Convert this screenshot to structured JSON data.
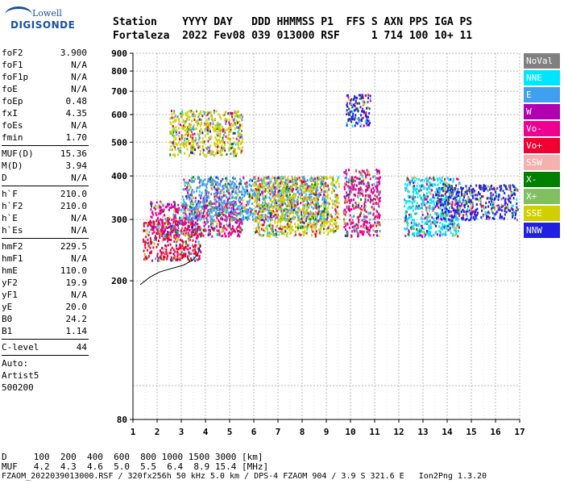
{
  "logo": {
    "line1": "Lowell",
    "line2": "DIGISONDE"
  },
  "header": {
    "row1": "Station    YYYY DAY   DDD HHMMSS P1  FFS S AXN PPS IGA PS",
    "row2": "Fortaleza  2022 Fev08 039 013000 RSF     1 714 100 10+ 11"
  },
  "parameters": [
    [
      {
        "name": "foF2",
        "value": "3.900"
      },
      {
        "name": "foF1",
        "value": "N/A"
      },
      {
        "name": "foF1p",
        "value": "N/A"
      },
      {
        "name": "foE",
        "value": "N/A"
      },
      {
        "name": "foEp",
        "value": "0.48"
      },
      {
        "name": "fxI",
        "value": "4.35"
      },
      {
        "name": "foEs",
        "value": "N/A"
      },
      {
        "name": "fmin",
        "value": "1.70"
      }
    ],
    [
      {
        "name": "MUF(D)",
        "value": "15.36"
      },
      {
        "name": "M(D)",
        "value": "3.94"
      },
      {
        "name": "D",
        "value": "N/A"
      }
    ],
    [
      {
        "name": "h`F",
        "value": "210.0"
      },
      {
        "name": "h`F2",
        "value": "210.0"
      },
      {
        "name": "h`E",
        "value": "N/A"
      },
      {
        "name": "h`Es",
        "value": "N/A"
      }
    ],
    [
      {
        "name": "hmF2",
        "value": "229.5"
      },
      {
        "name": "hmF1",
        "value": "N/A"
      },
      {
        "name": "hmE",
        "value": "110.0"
      },
      {
        "name": "yF2",
        "value": "19.9"
      },
      {
        "name": "yF1",
        "value": "N/A"
      },
      {
        "name": "yE",
        "value": "20.0"
      },
      {
        "name": "B0",
        "value": "24.2"
      },
      {
        "name": "B1",
        "value": "1.14"
      }
    ],
    [
      {
        "name": "C-level",
        "value": "44"
      }
    ]
  ],
  "autoscaling": {
    "label": "Auto:",
    "artist": "Artist5",
    "version": "500200"
  },
  "legend": [
    {
      "label": "NoVal",
      "color": "#808080"
    },
    {
      "label": "NNE",
      "color": "#00e5ff"
    },
    {
      "label": "E",
      "color": "#3fa0f0"
    },
    {
      "label": "W",
      "color": "#b000b0"
    },
    {
      "label": "Vo-",
      "color": "#f00090"
    },
    {
      "label": "Vo+",
      "color": "#f00030"
    },
    {
      "label": "SSW",
      "color": "#f5b0b0"
    },
    {
      "label": "X-",
      "color": "#008000"
    },
    {
      "label": "X+",
      "color": "#80c060"
    },
    {
      "label": "SSE",
      "color": "#d0d000"
    },
    {
      "label": "NNW",
      "color": "#2020e0"
    }
  ],
  "bottom": {
    "d_line": "D     100  200  400  600  800 1000 1500 3000 [km]",
    "muf_line": "MUF   4.2  4.3  4.6  5.0  5.5  6.4  8.9 15.4 [MHz]",
    "file_line": "FZAOM_2022039013000.RSF / 320fx256h 50 kHz 5.0 km / DPS-4 FZAOM 904 / 3.9 S 321.6 E   Ion2Png 1.3.20"
  },
  "chart_data": {
    "type": "scatter",
    "title": "",
    "xlabel": "",
    "ylabel": "",
    "xlim": [
      1,
      17
    ],
    "ylim": [
      80,
      900
    ],
    "x_ticks": [
      1,
      2,
      3,
      4,
      5,
      6,
      7,
      8,
      9,
      10,
      11,
      12,
      13,
      14,
      15,
      16,
      17
    ],
    "y_ticks": [
      80,
      200,
      300,
      400,
      500,
      600,
      700,
      800,
      900
    ],
    "y_scale": "log",
    "grid": true,
    "legend_placement": "right",
    "echo_clusters": [
      {
        "f_min": 1.4,
        "f_max": 3.8,
        "h_min": 230,
        "h_max": 300,
        "mode": "Vo+"
      },
      {
        "f_min": 1.7,
        "f_max": 5.5,
        "h_min": 270,
        "h_max": 340,
        "mode": "Vo-"
      },
      {
        "f_min": 2.5,
        "f_max": 5.5,
        "h_min": 460,
        "h_max": 620,
        "mode": "SSE"
      },
      {
        "f_min": 3.0,
        "f_max": 9.0,
        "h_min": 300,
        "h_max": 400,
        "mode": "E"
      },
      {
        "f_min": 6.0,
        "f_max": 9.5,
        "h_min": 270,
        "h_max": 400,
        "mode": "SSE"
      },
      {
        "f_min": 9.7,
        "f_max": 11.2,
        "h_min": 270,
        "h_max": 420,
        "mode": "Vo-"
      },
      {
        "f_min": 9.8,
        "f_max": 10.8,
        "h_min": 560,
        "h_max": 690,
        "mode": "NNW"
      },
      {
        "f_min": 12.2,
        "f_max": 14.5,
        "h_min": 270,
        "h_max": 400,
        "mode": "NNE"
      },
      {
        "f_min": 13.5,
        "f_max": 16.9,
        "h_min": 300,
        "h_max": 380,
        "mode": "NNW"
      }
    ],
    "trace_curve": [
      {
        "x": 1.3,
        "y": 195
      },
      {
        "x": 1.7,
        "y": 205
      },
      {
        "x": 2.1,
        "y": 212
      },
      {
        "x": 2.6,
        "y": 217
      },
      {
        "x": 3.1,
        "y": 222
      },
      {
        "x": 3.5,
        "y": 230
      },
      {
        "x": 3.7,
        "y": 240
      },
      {
        "x": 3.8,
        "y": 255
      }
    ]
  }
}
